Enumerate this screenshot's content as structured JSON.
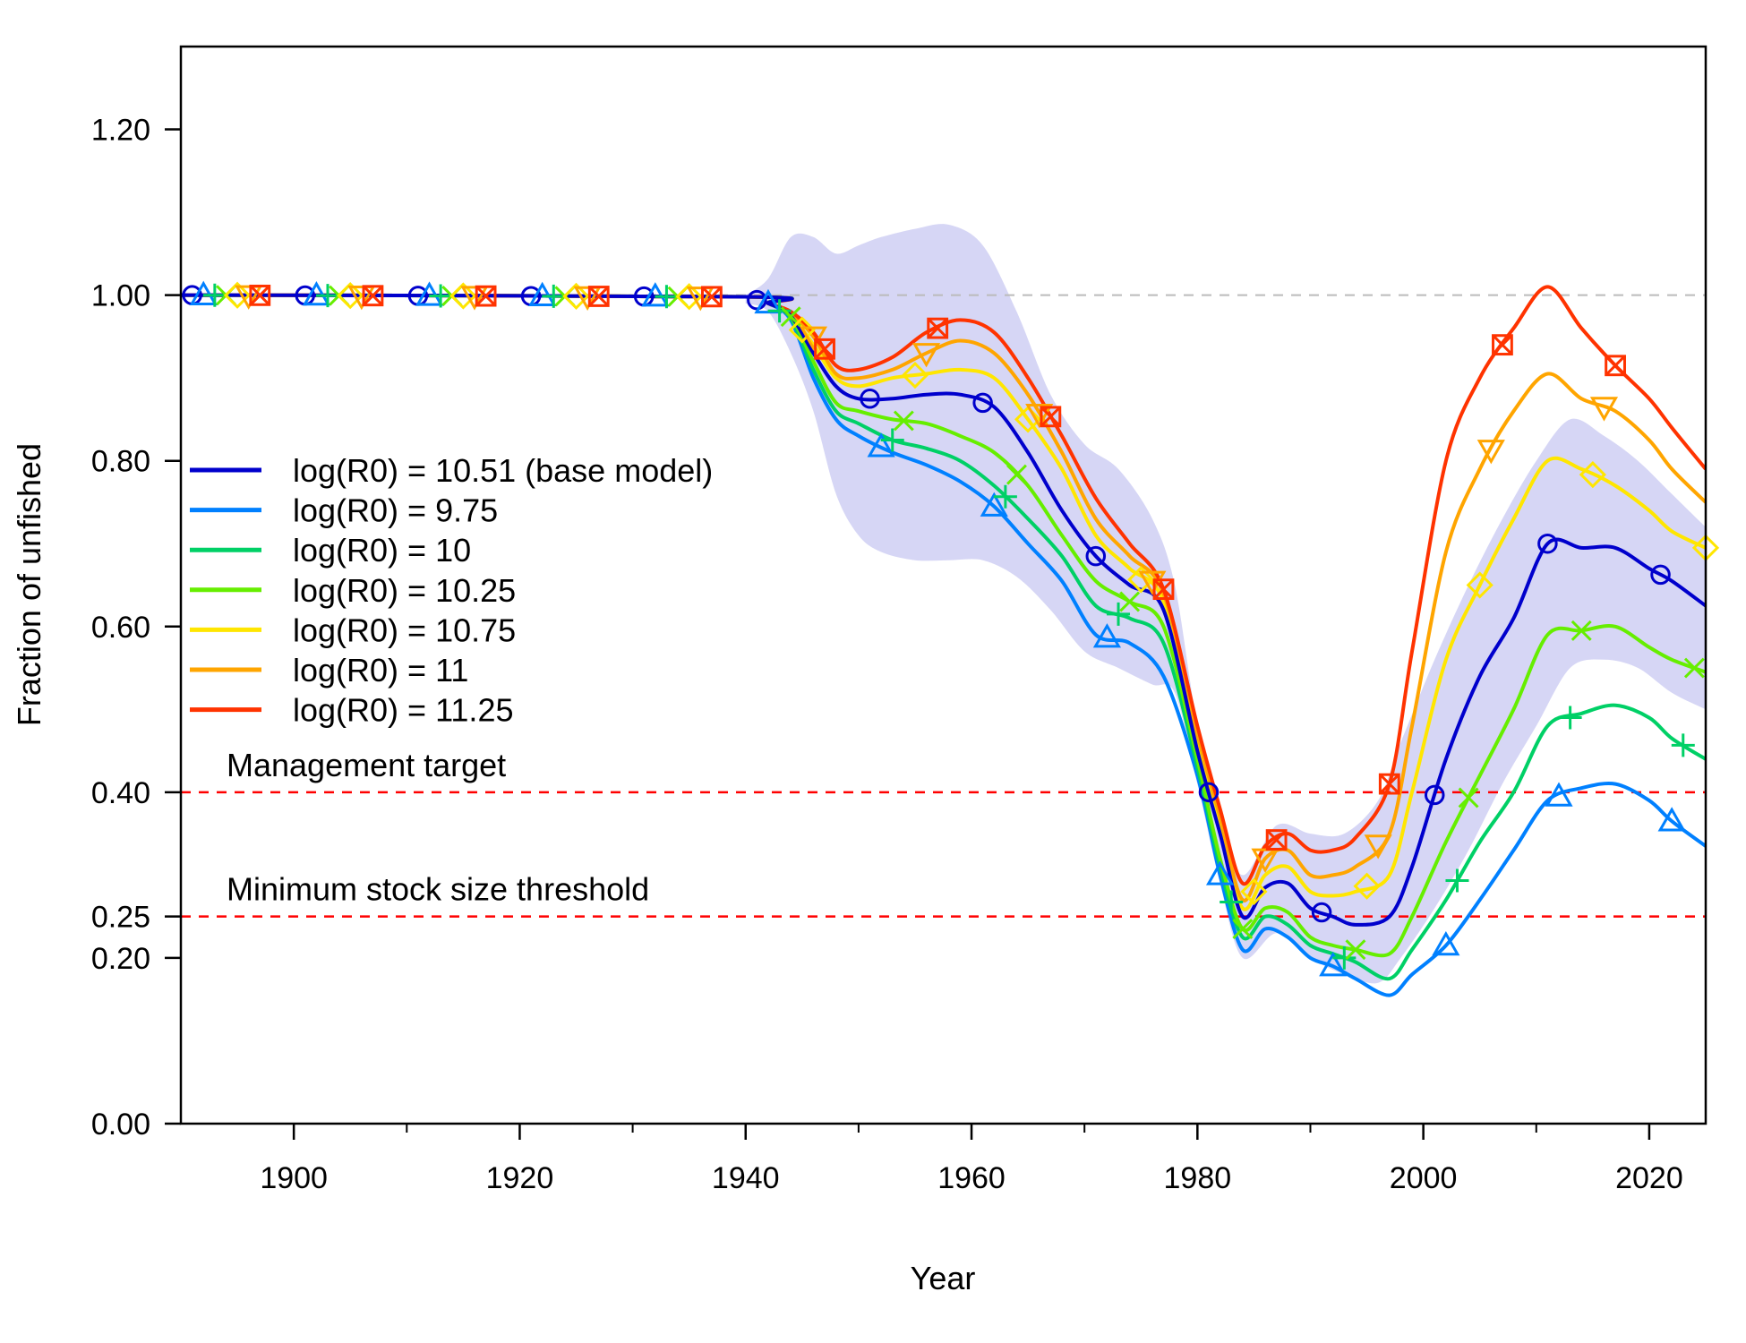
{
  "chart_data": {
    "type": "line",
    "xlabel": "Year",
    "ylabel": "Fraction of unfished",
    "xlim": [
      1890,
      2025
    ],
    "ylim": [
      0,
      1.3
    ],
    "x_ticks": [
      "1900",
      "1920",
      "1940",
      "1960",
      "1980",
      "2000",
      "2020"
    ],
    "y_ticks": [
      "0.00",
      "0.20",
      "0.25",
      "0.40",
      "0.60",
      "0.80",
      "1.00",
      "1.20"
    ],
    "grid": false,
    "legend_position": "left",
    "reference_lines": [
      {
        "label": "",
        "y": 1.0,
        "color": "#BBBBBB",
        "style": "dashed"
      },
      {
        "label": "Management target",
        "y": 0.4,
        "color": "#FF0000",
        "style": "dashed"
      },
      {
        "label": "Minimum stock size threshold",
        "y": 0.25,
        "color": "#FF0000",
        "style": "dashed"
      }
    ],
    "uncertainty_band": {
      "series": "log(R0) = 10.51 (base model)",
      "color": "#D6D6F5",
      "x": [
        1940,
        1942,
        1944,
        1946,
        1948,
        1950,
        1952,
        1955,
        1958,
        1961,
        1964,
        1967,
        1970,
        1973,
        1976,
        1978,
        1980,
        1982,
        1984,
        1987,
        1990,
        1993,
        1996,
        1998,
        2001,
        2004,
        2007,
        2010,
        2013,
        2016,
        2019,
        2022,
        2025
      ],
      "upper": [
        1.0,
        1.02,
        1.07,
        1.07,
        1.05,
        1.06,
        1.07,
        1.08,
        1.085,
        1.06,
        0.98,
        0.88,
        0.82,
        0.79,
        0.73,
        0.65,
        0.48,
        0.37,
        0.3,
        0.36,
        0.35,
        0.35,
        0.39,
        0.46,
        0.56,
        0.65,
        0.73,
        0.8,
        0.85,
        0.83,
        0.8,
        0.76,
        0.72
      ],
      "lower": [
        0.99,
        0.98,
        0.93,
        0.86,
        0.76,
        0.71,
        0.69,
        0.68,
        0.68,
        0.68,
        0.66,
        0.62,
        0.57,
        0.55,
        0.53,
        0.52,
        0.41,
        0.29,
        0.2,
        0.23,
        0.2,
        0.18,
        0.17,
        0.2,
        0.26,
        0.33,
        0.41,
        0.48,
        0.55,
        0.56,
        0.55,
        0.52,
        0.5
      ]
    },
    "x": [
      1890,
      1940,
      1942,
      1944,
      1946,
      1948,
      1950,
      1953,
      1956,
      1959,
      1962,
      1965,
      1968,
      1971,
      1974,
      1977,
      1980,
      1982,
      1984,
      1986,
      1988,
      1990,
      1992,
      1994,
      1997,
      1999,
      2002,
      2005,
      2008,
      2011,
      2014,
      2017,
      2020,
      2022,
      2025
    ],
    "series": [
      {
        "name": "log(R0) = 10.51 (base model)",
        "color": "#0000CC",
        "marker": "circle",
        "values": [
          1.0,
          0.998,
          0.99,
          0.975,
          0.93,
          0.89,
          0.875,
          0.875,
          0.88,
          0.88,
          0.865,
          0.81,
          0.74,
          0.685,
          0.65,
          0.62,
          0.45,
          0.35,
          0.25,
          0.285,
          0.29,
          0.26,
          0.25,
          0.24,
          0.25,
          0.31,
          0.44,
          0.54,
          0.61,
          0.7,
          0.695,
          0.695,
          0.67,
          0.655,
          0.625
        ],
        "marker_x": [
          1891,
          1901,
          1911,
          1921,
          1931,
          1941,
          1951,
          1961,
          1971,
          1981,
          1991,
          2001,
          2011,
          2021
        ]
      },
      {
        "name": "log(R0) = 9.75",
        "color": "#0080FF",
        "marker": "triangle-up",
        "values": [
          1.0,
          0.998,
          0.99,
          0.97,
          0.9,
          0.85,
          0.83,
          0.81,
          0.795,
          0.775,
          0.745,
          0.7,
          0.655,
          0.59,
          0.58,
          0.54,
          0.42,
          0.3,
          0.21,
          0.235,
          0.225,
          0.2,
          0.19,
          0.175,
          0.155,
          0.18,
          0.215,
          0.27,
          0.33,
          0.39,
          0.405,
          0.41,
          0.39,
          0.365,
          0.335
        ],
        "marker_x": [
          1892,
          1902,
          1912,
          1922,
          1932,
          1942,
          1952,
          1962,
          1972,
          1982,
          1992,
          2002,
          2012,
          2022
        ]
      },
      {
        "name": "log(R0) = 10",
        "color": "#00D066",
        "marker": "plus",
        "values": [
          1.0,
          0.998,
          0.99,
          0.972,
          0.91,
          0.86,
          0.845,
          0.825,
          0.815,
          0.8,
          0.77,
          0.73,
          0.685,
          0.625,
          0.61,
          0.58,
          0.43,
          0.31,
          0.225,
          0.25,
          0.24,
          0.215,
          0.205,
          0.195,
          0.175,
          0.21,
          0.27,
          0.34,
          0.4,
          0.48,
          0.495,
          0.505,
          0.49,
          0.465,
          0.44
        ],
        "marker_x": [
          1893,
          1903,
          1913,
          1923,
          1933,
          1943,
          1953,
          1963,
          1973,
          1983,
          1993,
          2003,
          2013,
          2023
        ]
      },
      {
        "name": "log(R0) = 10.25",
        "color": "#66EE00",
        "marker": "x",
        "values": [
          1.0,
          0.998,
          0.99,
          0.974,
          0.92,
          0.87,
          0.86,
          0.85,
          0.845,
          0.83,
          0.81,
          0.77,
          0.71,
          0.655,
          0.63,
          0.6,
          0.44,
          0.32,
          0.235,
          0.26,
          0.255,
          0.225,
          0.215,
          0.21,
          0.205,
          0.25,
          0.34,
          0.42,
          0.5,
          0.59,
          0.595,
          0.6,
          0.575,
          0.56,
          0.545
        ],
        "marker_x": [
          1894,
          1904,
          1914,
          1924,
          1934,
          1944,
          1954,
          1964,
          1974,
          1984,
          1994,
          2004,
          2014,
          2024
        ]
      },
      {
        "name": "log(R0) = 10.75",
        "color": "#FFE600",
        "marker": "diamond",
        "values": [
          1.0,
          0.998,
          0.99,
          0.976,
          0.94,
          0.9,
          0.89,
          0.9,
          0.905,
          0.91,
          0.9,
          0.85,
          0.79,
          0.71,
          0.67,
          0.63,
          0.46,
          0.36,
          0.26,
          0.3,
          0.31,
          0.28,
          0.275,
          0.28,
          0.3,
          0.4,
          0.56,
          0.65,
          0.73,
          0.8,
          0.79,
          0.77,
          0.74,
          0.715,
          0.695
        ],
        "marker_x": [
          1895,
          1905,
          1915,
          1925,
          1935,
          1945,
          1955,
          1965,
          1975,
          1985,
          1995,
          2005,
          2015,
          2025
        ]
      },
      {
        "name": "log(R0) = 11",
        "color": "#FFA500",
        "marker": "triangle-down",
        "values": [
          1.0,
          0.998,
          0.99,
          0.978,
          0.95,
          0.905,
          0.9,
          0.91,
          0.93,
          0.945,
          0.93,
          0.88,
          0.81,
          0.73,
          0.685,
          0.64,
          0.47,
          0.37,
          0.27,
          0.32,
          0.33,
          0.3,
          0.3,
          0.31,
          0.35,
          0.48,
          0.69,
          0.79,
          0.86,
          0.905,
          0.875,
          0.86,
          0.825,
          0.79,
          0.75
        ],
        "marker_x": [
          1896,
          1906,
          1916,
          1926,
          1936,
          1946,
          1956,
          1966,
          1976,
          1986,
          1996,
          2006,
          2016
        ]
      },
      {
        "name": "log(R0) = 11.25",
        "color": "#FF3300",
        "marker": "square-x",
        "values": [
          1.0,
          0.998,
          0.99,
          0.98,
          0.955,
          0.915,
          0.91,
          0.925,
          0.955,
          0.97,
          0.955,
          0.9,
          0.83,
          0.755,
          0.7,
          0.645,
          0.48,
          0.38,
          0.29,
          0.335,
          0.35,
          0.33,
          0.33,
          0.345,
          0.41,
          0.57,
          0.8,
          0.9,
          0.96,
          1.01,
          0.96,
          0.915,
          0.875,
          0.84,
          0.79
        ],
        "marker_x": [
          1897,
          1907,
          1917,
          1927,
          1937,
          1947,
          1957,
          1967,
          1977,
          1987,
          1997,
          2007,
          2017
        ]
      }
    ]
  }
}
